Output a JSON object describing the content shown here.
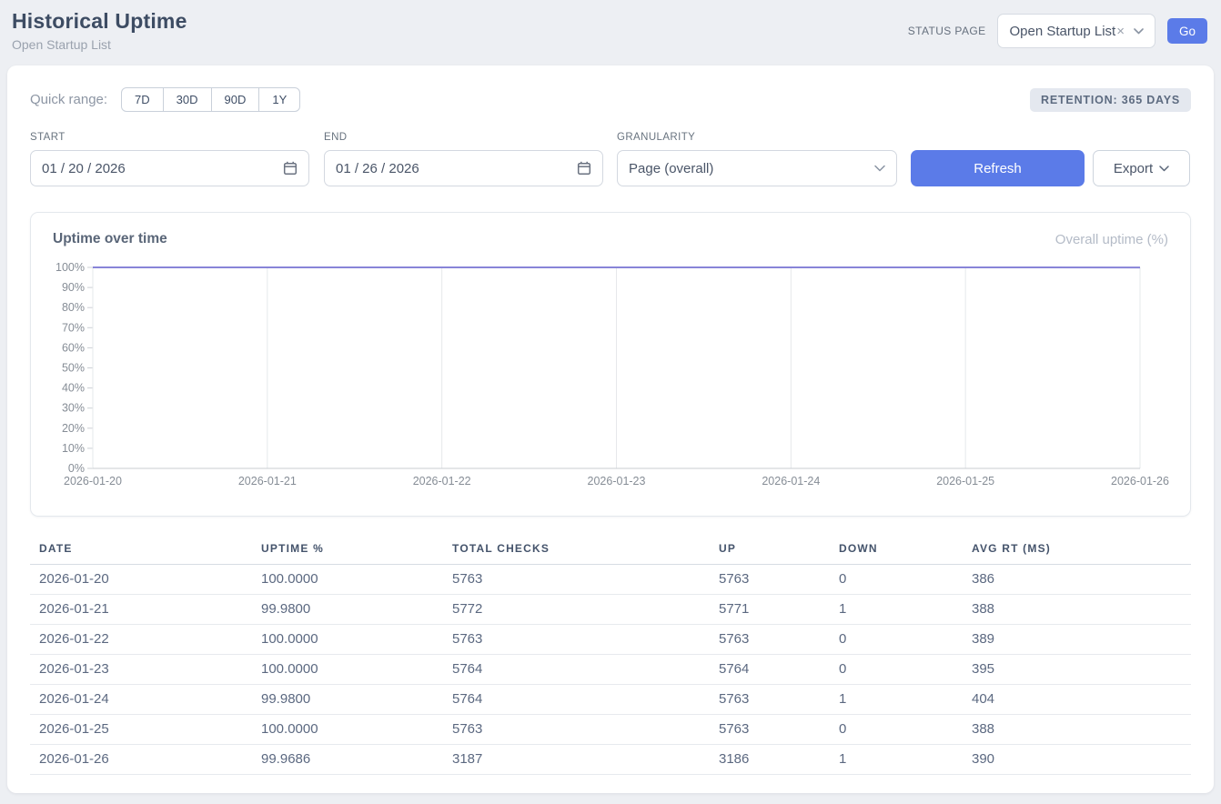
{
  "header": {
    "title": "Historical Uptime",
    "subtitle": "Open Startup List",
    "status_page_label": "STATUS PAGE",
    "status_page_value": "Open Startup List",
    "clear_icon": "×",
    "go_label": "Go"
  },
  "filters": {
    "quick_range_label": "Quick range:",
    "quick_ranges": [
      "7D",
      "30D",
      "90D",
      "1Y"
    ],
    "retention_badge": "RETENTION: 365 DAYS",
    "start_label": "START",
    "start_value": "01 / 20 / 2026",
    "end_label": "END",
    "end_value": "01 / 26 / 2026",
    "granularity_label": "GRANULARITY",
    "granularity_value": "Page (overall)",
    "refresh_label": "Refresh",
    "export_label": "Export"
  },
  "chart": {
    "title": "Uptime over time",
    "legend": "Overall uptime (%)"
  },
  "chart_data": {
    "type": "line",
    "title": "Uptime over time",
    "legend": [
      "Overall uptime (%)"
    ],
    "legend_position": "top-right",
    "x": [
      "2026-01-20",
      "2026-01-21",
      "2026-01-22",
      "2026-01-23",
      "2026-01-24",
      "2026-01-25",
      "2026-01-26"
    ],
    "series": [
      {
        "name": "Overall uptime (%)",
        "color": "#8884d8",
        "values": [
          100.0,
          99.98,
          100.0,
          100.0,
          99.98,
          100.0,
          99.9686
        ]
      }
    ],
    "ylim": [
      0,
      100
    ],
    "y_tick_step": 10,
    "y_tick_suffix": "%",
    "grid": "vertical",
    "axis_color": "#c9cdd2",
    "grid_color": "#e6e8eb",
    "tick_text_color": "#868d96"
  },
  "table": {
    "columns": [
      "DATE",
      "UPTIME %",
      "TOTAL CHECKS",
      "UP",
      "DOWN",
      "AVG RT (MS)"
    ],
    "rows": [
      [
        "2026-01-20",
        "100.0000",
        "5763",
        "5763",
        "0",
        "386"
      ],
      [
        "2026-01-21",
        "99.9800",
        "5772",
        "5771",
        "1",
        "388"
      ],
      [
        "2026-01-22",
        "100.0000",
        "5763",
        "5763",
        "0",
        "389"
      ],
      [
        "2026-01-23",
        "100.0000",
        "5764",
        "5764",
        "0",
        "395"
      ],
      [
        "2026-01-24",
        "99.9800",
        "5764",
        "5763",
        "1",
        "404"
      ],
      [
        "2026-01-25",
        "100.0000",
        "5763",
        "5763",
        "0",
        "388"
      ],
      [
        "2026-01-26",
        "99.9686",
        "3187",
        "3186",
        "1",
        "390"
      ]
    ]
  },
  "colors": {
    "accent_blue": "#5b7be8",
    "line_purple": "#8884d8",
    "page_background": "#edeff3"
  }
}
